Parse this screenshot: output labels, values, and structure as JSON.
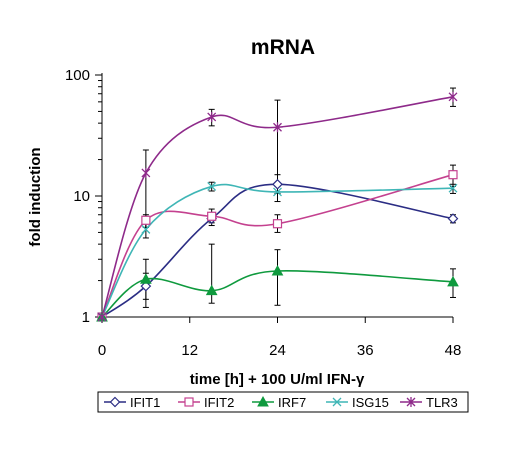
{
  "chart_data": {
    "type": "line",
    "title": "mRNA",
    "xlabel": "time [h] + 100 U/ml IFN-γ",
    "ylabel": "fold induction",
    "x_ticks": [
      0,
      12,
      24,
      36,
      48
    ],
    "y_ticks": [
      1,
      10,
      100
    ],
    "y_tick_labels": [
      "1",
      "10",
      "100"
    ],
    "xlim": [
      0,
      48
    ],
    "ylim": [
      1,
      100
    ],
    "y_scale": "log",
    "grid": false,
    "legend_position": "bottom",
    "series": [
      {
        "name": "IFIT1",
        "color": "#2b2d84",
        "marker": "diamond-open",
        "points": [
          {
            "x": 0,
            "y": 1.0,
            "err_lo": 1.0,
            "err_hi": 1.0
          },
          {
            "x": 6,
            "y": 1.8,
            "err_lo": 1.2,
            "err_hi": 2.3
          },
          {
            "x": 15,
            "y": 6.5,
            "err_lo": 6.0,
            "err_hi": 7.0
          },
          {
            "x": 24,
            "y": 12.5,
            "err_lo": 10.5,
            "err_hi": 15.0
          },
          {
            "x": 48,
            "y": 6.5,
            "err_lo": 6.0,
            "err_hi": 7.0
          }
        ]
      },
      {
        "name": "IFIT2",
        "color": "#c4418f",
        "marker": "square-open",
        "points": [
          {
            "x": 0,
            "y": 1.0,
            "err_lo": 1.0,
            "err_hi": 1.0
          },
          {
            "x": 6,
            "y": 6.3,
            "err_lo": 5.5,
            "err_hi": 7.0
          },
          {
            "x": 15,
            "y": 6.8,
            "err_lo": 5.7,
            "err_hi": 7.8
          },
          {
            "x": 24,
            "y": 5.9,
            "err_lo": 5.0,
            "err_hi": 7.0
          },
          {
            "x": 48,
            "y": 15.0,
            "err_lo": 12.0,
            "err_hi": 18.0
          }
        ]
      },
      {
        "name": "IRF7",
        "color": "#0f9a3e",
        "marker": "triangle-filled",
        "points": [
          {
            "x": 0,
            "y": 1.0,
            "err_lo": 1.0,
            "err_hi": 1.0
          },
          {
            "x": 6,
            "y": 2.05,
            "err_lo": 1.4,
            "err_hi": 3.0
          },
          {
            "x": 15,
            "y": 1.65,
            "err_lo": 1.3,
            "err_hi": 4.0
          },
          {
            "x": 24,
            "y": 2.4,
            "err_lo": 1.25,
            "err_hi": 3.6
          },
          {
            "x": 48,
            "y": 1.95,
            "err_lo": 1.45,
            "err_hi": 2.5
          }
        ]
      },
      {
        "name": "ISG15",
        "color": "#3fb6b6",
        "marker": "x",
        "points": [
          {
            "x": 0,
            "y": 1.0,
            "err_lo": 1.0,
            "err_hi": 1.0
          },
          {
            "x": 6,
            "y": 5.3,
            "err_lo": 4.5,
            "err_hi": 6.0
          },
          {
            "x": 15,
            "y": 12.0,
            "err_lo": 11.0,
            "err_hi": 13.0
          },
          {
            "x": 24,
            "y": 10.8,
            "err_lo": 9.0,
            "err_hi": 12.0
          },
          {
            "x": 48,
            "y": 11.6,
            "err_lo": 10.5,
            "err_hi": 12.5
          }
        ]
      },
      {
        "name": "TLR3",
        "color": "#8e2a8a",
        "marker": "star",
        "points": [
          {
            "x": 0,
            "y": 1.0,
            "err_lo": 1.0,
            "err_hi": 1.0
          },
          {
            "x": 6,
            "y": 15.5,
            "err_lo": 5.5,
            "err_hi": 24.0
          },
          {
            "x": 15,
            "y": 45.0,
            "err_lo": 38.0,
            "err_hi": 52.0
          },
          {
            "x": 24,
            "y": 37.0,
            "err_lo": 10.5,
            "err_hi": 62.0
          },
          {
            "x": 48,
            "y": 66.0,
            "err_lo": 55.0,
            "err_hi": 78.0
          }
        ]
      }
    ]
  }
}
